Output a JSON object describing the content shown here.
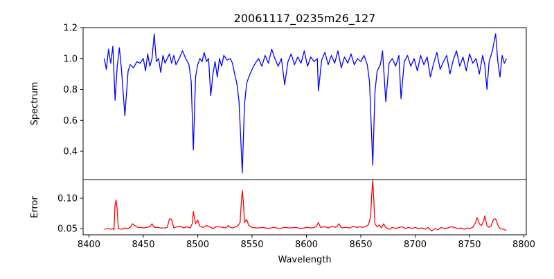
{
  "chart_data": [
    {
      "type": "line",
      "title": "20061117_0235m26_127",
      "xlabel": "",
      "ylabel": "Spectrum",
      "xlim": [
        8394.6,
        8802.2
      ],
      "ylim": [
        0.217,
        1.2
      ],
      "yticks": [
        0.4,
        0.6,
        0.8,
        1.0,
        1.2
      ],
      "ytick_labels": [
        "0.4",
        "0.6",
        "0.8",
        "1.0",
        "1.2"
      ],
      "color": "#0000ff",
      "points": [
        [
          8414,
          1.0
        ],
        [
          8416,
          0.93
        ],
        [
          8418,
          1.06
        ],
        [
          8420,
          0.97
        ],
        [
          8422,
          1.08
        ],
        [
          8424,
          0.73
        ],
        [
          8426,
          0.95
        ],
        [
          8428,
          1.07
        ],
        [
          8430,
          0.92
        ],
        [
          8433,
          0.63
        ],
        [
          8436,
          0.92
        ],
        [
          8438,
          0.96
        ],
        [
          8441,
          0.94
        ],
        [
          8444,
          0.98
        ],
        [
          8447,
          0.97
        ],
        [
          8450,
          1.0
        ],
        [
          8452,
          0.92
        ],
        [
          8454,
          1.03
        ],
        [
          8456,
          0.95
        ],
        [
          8458,
          1.0
        ],
        [
          8460,
          1.16
        ],
        [
          8462,
          0.98
        ],
        [
          8464,
          1.0
        ],
        [
          8466,
          0.91
        ],
        [
          8468,
          1.02
        ],
        [
          8470,
          0.97
        ],
        [
          8472,
          1.0
        ],
        [
          8474,
          1.03
        ],
        [
          8476,
          0.97
        ],
        [
          8478,
          1.02
        ],
        [
          8480,
          0.96
        ],
        [
          8483,
          1.0
        ],
        [
          8486,
          1.05
        ],
        [
          8489,
          1.0
        ],
        [
          8492,
          0.96
        ],
        [
          8494,
          0.85
        ],
        [
          8496,
          0.41
        ],
        [
          8498,
          0.88
        ],
        [
          8500,
          0.96
        ],
        [
          8502,
          1.0
        ],
        [
          8504,
          0.98
        ],
        [
          8506,
          1.04
        ],
        [
          8508,
          0.98
        ],
        [
          8510,
          1.0
        ],
        [
          8512,
          0.76
        ],
        [
          8514,
          0.9
        ],
        [
          8516,
          0.98
        ],
        [
          8518,
          0.88
        ],
        [
          8520,
          1.0
        ],
        [
          8522,
          0.95
        ],
        [
          8524,
          1.02
        ],
        [
          8527,
          0.99
        ],
        [
          8530,
          1.0
        ],
        [
          8532,
          0.97
        ],
        [
          8534,
          0.9
        ],
        [
          8536,
          0.84
        ],
        [
          8538,
          0.72
        ],
        [
          8541,
          0.26
        ],
        [
          8543,
          0.7
        ],
        [
          8545,
          0.84
        ],
        [
          8547,
          0.88
        ],
        [
          8550,
          0.93
        ],
        [
          8553,
          0.97
        ],
        [
          8556,
          1.0
        ],
        [
          8559,
          0.95
        ],
        [
          8562,
          1.02
        ],
        [
          8565,
          0.97
        ],
        [
          8568,
          1.06
        ],
        [
          8571,
          1.0
        ],
        [
          8574,
          0.95
        ],
        [
          8577,
          1.0
        ],
        [
          8580,
          0.83
        ],
        [
          8583,
          0.98
        ],
        [
          8586,
          1.03
        ],
        [
          8589,
          0.96
        ],
        [
          8592,
          1.01
        ],
        [
          8595,
          0.97
        ],
        [
          8598,
          1.05
        ],
        [
          8601,
          0.95
        ],
        [
          8604,
          1.01
        ],
        [
          8607,
          0.98
        ],
        [
          8610,
          1.0
        ],
        [
          8611,
          0.79
        ],
        [
          8614,
          0.99
        ],
        [
          8617,
          1.04
        ],
        [
          8620,
          0.96
        ],
        [
          8623,
          1.02
        ],
        [
          8626,
          0.97
        ],
        [
          8629,
          1.05
        ],
        [
          8632,
          0.94
        ],
        [
          8635,
          1.01
        ],
        [
          8638,
          0.97
        ],
        [
          8641,
          1.03
        ],
        [
          8644,
          0.96
        ],
        [
          8647,
          1.0
        ],
        [
          8650,
          0.98
        ],
        [
          8653,
          1.02
        ],
        [
          8656,
          0.96
        ],
        [
          8658,
          0.85
        ],
        [
          8661,
          0.31
        ],
        [
          8663,
          0.78
        ],
        [
          8665,
          0.92
        ],
        [
          8668,
          0.96
        ],
        [
          8670,
          1.05
        ],
        [
          8673,
          0.72
        ],
        [
          8676,
          0.97
        ],
        [
          8679,
          1.0
        ],
        [
          8682,
          0.95
        ],
        [
          8685,
          1.02
        ],
        [
          8687,
          0.74
        ],
        [
          8690,
          0.98
        ],
        [
          8693,
          1.02
        ],
        [
          8696,
          0.95
        ],
        [
          8699,
          1.0
        ],
        [
          8702,
          0.92
        ],
        [
          8705,
          1.02
        ],
        [
          8708,
          0.96
        ],
        [
          8711,
          1.01
        ],
        [
          8714,
          0.88
        ],
        [
          8717,
          0.97
        ],
        [
          8720,
          1.04
        ],
        [
          8723,
          0.93
        ],
        [
          8726,
          0.98
        ],
        [
          8729,
          1.02
        ],
        [
          8732,
          0.9
        ],
        [
          8735,
          0.99
        ],
        [
          8738,
          1.05
        ],
        [
          8741,
          0.95
        ],
        [
          8744,
          1.01
        ],
        [
          8747,
          0.92
        ],
        [
          8750,
          1.03
        ],
        [
          8753,
          0.97
        ],
        [
          8756,
          1.0
        ],
        [
          8759,
          0.9
        ],
        [
          8762,
          1.02
        ],
        [
          8764,
          0.96
        ],
        [
          8766,
          0.8
        ],
        [
          8768,
          0.98
        ],
        [
          8771,
          1.05
        ],
        [
          8774,
          1.16
        ],
        [
          8776,
          0.98
        ],
        [
          8778,
          0.88
        ],
        [
          8780,
          1.02
        ],
        [
          8782,
          0.97
        ],
        [
          8784,
          1.0
        ]
      ]
    },
    {
      "type": "line",
      "xlabel": "Wavelength",
      "ylabel": "Error",
      "xlim": [
        8394.6,
        8802.2
      ],
      "ylim": [
        0.0398,
        0.1307
      ],
      "xticks": [
        8400,
        8450,
        8500,
        8550,
        8600,
        8650,
        8700,
        8750,
        8800
      ],
      "xtick_labels": [
        "8400",
        "8450",
        "8500",
        "8550",
        "8600",
        "8650",
        "8700",
        "8750",
        "8800"
      ],
      "yticks": [
        0.05,
        0.1
      ],
      "ytick_labels": [
        "0.05",
        "0.10"
      ],
      "color": "#ff0000",
      "points": [
        [
          8414,
          0.049
        ],
        [
          8417,
          0.05
        ],
        [
          8420,
          0.049
        ],
        [
          8422,
          0.05
        ],
        [
          8423,
          0.048
        ],
        [
          8424,
          0.09
        ],
        [
          8425,
          0.097
        ],
        [
          8426,
          0.08
        ],
        [
          8427,
          0.05
        ],
        [
          8430,
          0.049
        ],
        [
          8433,
          0.051
        ],
        [
          8436,
          0.05
        ],
        [
          8438,
          0.052
        ],
        [
          8440,
          0.058
        ],
        [
          8442,
          0.055
        ],
        [
          8445,
          0.052
        ],
        [
          8448,
          0.052
        ],
        [
          8450,
          0.051
        ],
        [
          8453,
          0.052
        ],
        [
          8456,
          0.053
        ],
        [
          8458,
          0.058
        ],
        [
          8460,
          0.052
        ],
        [
          8463,
          0.052
        ],
        [
          8466,
          0.051
        ],
        [
          8470,
          0.051
        ],
        [
          8472,
          0.052
        ],
        [
          8474,
          0.066
        ],
        [
          8476,
          0.065
        ],
        [
          8478,
          0.051
        ],
        [
          8481,
          0.053
        ],
        [
          8484,
          0.054
        ],
        [
          8487,
          0.051
        ],
        [
          8490,
          0.053
        ],
        [
          8493,
          0.051
        ],
        [
          8495,
          0.058
        ],
        [
          8496,
          0.078
        ],
        [
          8498,
          0.058
        ],
        [
          8500,
          0.064
        ],
        [
          8502,
          0.054
        ],
        [
          8505,
          0.052
        ],
        [
          8508,
          0.055
        ],
        [
          8511,
          0.053
        ],
        [
          8514,
          0.05
        ],
        [
          8517,
          0.053
        ],
        [
          8520,
          0.053
        ],
        [
          8523,
          0.052
        ],
        [
          8526,
          0.051
        ],
        [
          8528,
          0.055
        ],
        [
          8530,
          0.052
        ],
        [
          8532,
          0.051
        ],
        [
          8535,
          0.053
        ],
        [
          8537,
          0.055
        ],
        [
          8539,
          0.06
        ],
        [
          8540,
          0.09
        ],
        [
          8541,
          0.113
        ],
        [
          8542,
          0.095
        ],
        [
          8543,
          0.06
        ],
        [
          8545,
          0.065
        ],
        [
          8547,
          0.055
        ],
        [
          8550,
          0.052
        ],
        [
          8555,
          0.051
        ],
        [
          8560,
          0.052
        ],
        [
          8565,
          0.05
        ],
        [
          8570,
          0.052
        ],
        [
          8575,
          0.05
        ],
        [
          8580,
          0.052
        ],
        [
          8585,
          0.051
        ],
        [
          8590,
          0.052
        ],
        [
          8595,
          0.05
        ],
        [
          8600,
          0.052
        ],
        [
          8605,
          0.051
        ],
        [
          8609,
          0.053
        ],
        [
          8611,
          0.06
        ],
        [
          8613,
          0.052
        ],
        [
          8617,
          0.053
        ],
        [
          8620,
          0.051
        ],
        [
          8624,
          0.054
        ],
        [
          8627,
          0.052
        ],
        [
          8630,
          0.058
        ],
        [
          8632,
          0.051
        ],
        [
          8636,
          0.052
        ],
        [
          8640,
          0.051
        ],
        [
          8643,
          0.054
        ],
        [
          8646,
          0.052
        ],
        [
          8649,
          0.053
        ],
        [
          8652,
          0.052
        ],
        [
          8655,
          0.054
        ],
        [
          8657,
          0.056
        ],
        [
          8659,
          0.07
        ],
        [
          8660,
          0.105
        ],
        [
          8661,
          0.13
        ],
        [
          8662,
          0.095
        ],
        [
          8663,
          0.058
        ],
        [
          8665,
          0.053
        ],
        [
          8667,
          0.056
        ],
        [
          8669,
          0.051
        ],
        [
          8671,
          0.058
        ],
        [
          8673,
          0.052
        ],
        [
          8676,
          0.049
        ],
        [
          8679,
          0.052
        ],
        [
          8682,
          0.05
        ],
        [
          8685,
          0.052
        ],
        [
          8688,
          0.053
        ],
        [
          8691,
          0.05
        ],
        [
          8694,
          0.052
        ],
        [
          8697,
          0.05
        ],
        [
          8700,
          0.052
        ],
        [
          8703,
          0.05
        ],
        [
          8706,
          0.051
        ],
        [
          8709,
          0.049
        ],
        [
          8712,
          0.052
        ],
        [
          8715,
          0.046
        ],
        [
          8718,
          0.05
        ],
        [
          8721,
          0.048
        ],
        [
          8724,
          0.052
        ],
        [
          8727,
          0.05
        ],
        [
          8730,
          0.051
        ],
        [
          8733,
          0.053
        ],
        [
          8736,
          0.052
        ],
        [
          8739,
          0.05
        ],
        [
          8742,
          0.051
        ],
        [
          8745,
          0.049
        ],
        [
          8748,
          0.051
        ],
        [
          8750,
          0.05
        ],
        [
          8753,
          0.052
        ],
        [
          8755,
          0.058
        ],
        [
          8757,
          0.068
        ],
        [
          8759,
          0.058
        ],
        [
          8761,
          0.055
        ],
        [
          8763,
          0.062
        ],
        [
          8764,
          0.071
        ],
        [
          8766,
          0.055
        ],
        [
          8768,
          0.052
        ],
        [
          8770,
          0.055
        ],
        [
          8772,
          0.065
        ],
        [
          8774,
          0.066
        ],
        [
          8776,
          0.056
        ],
        [
          8778,
          0.05
        ],
        [
          8781,
          0.049
        ],
        [
          8784,
          0.047
        ]
      ]
    }
  ]
}
